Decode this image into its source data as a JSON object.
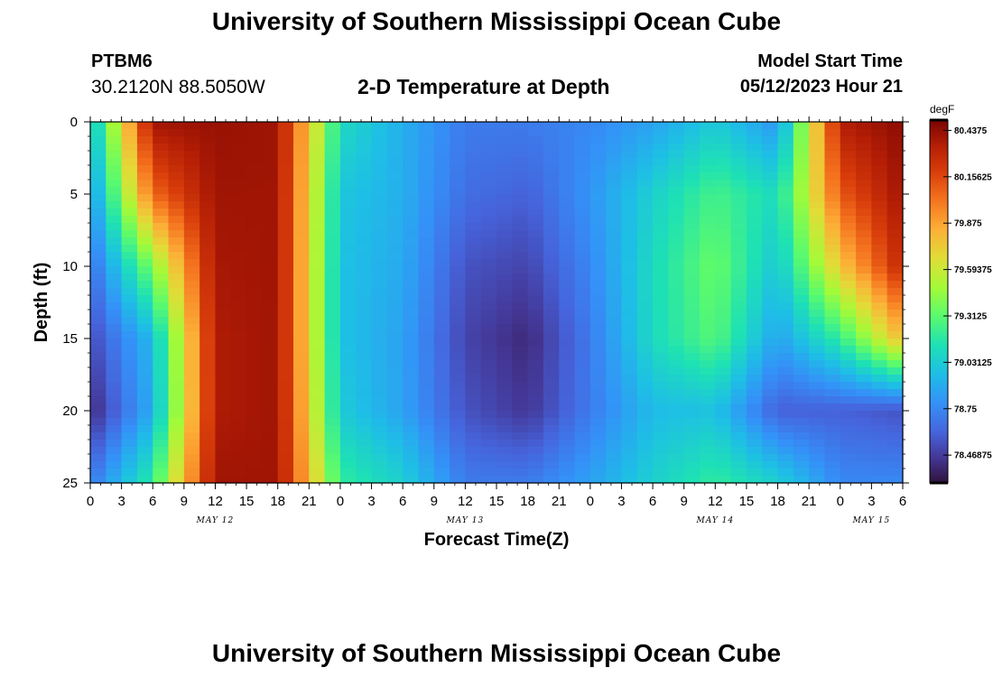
{
  "header": {
    "title": "University of Southern Mississippi Ocean Cube",
    "station": "PTBM6",
    "coords": "30.2120N  88.5050W",
    "plot_heading": "2-D Temperature at Depth",
    "model_start_label": "Model Start Time",
    "model_start_value": "05/12/2023 Hour 21"
  },
  "footer": {
    "title": "University of Southern Mississippi Ocean Cube"
  },
  "chart_data": {
    "type": "heatmap",
    "xlabel": "Forecast Time(Z)",
    "ylabel": "Depth (ft)",
    "x_tick_labels": [
      "0",
      "3",
      "6",
      "9",
      "12",
      "15",
      "18",
      "21",
      "0",
      "3",
      "6",
      "9",
      "12",
      "15",
      "18",
      "21",
      "0",
      "3",
      "6",
      "9",
      "12",
      "15",
      "18",
      "21",
      "0",
      "3",
      "6"
    ],
    "x_range_hours": [
      0,
      78
    ],
    "date_labels": [
      {
        "label": "MAY 12",
        "center_hour": 12
      },
      {
        "label": "MAY 13",
        "center_hour": 36
      },
      {
        "label": "MAY 14",
        "center_hour": 60
      },
      {
        "label": "MAY 15",
        "center_hour": 75
      }
    ],
    "y_ticks": [
      0,
      5,
      10,
      15,
      20,
      25
    ],
    "ylim": [
      0,
      25
    ],
    "y_inverted": true,
    "colorbar": {
      "unit": "degF",
      "min": 78.3,
      "max": 80.5,
      "tick_labels": [
        "80.4375",
        "80.15625",
        "79.875",
        "79.59375",
        "79.3125",
        "79.03125",
        "78.75",
        "78.46875"
      ],
      "tick_values": [
        80.4375,
        80.15625,
        79.875,
        79.59375,
        79.3125,
        79.03125,
        78.75,
        78.46875
      ]
    },
    "x_hours": [
      0,
      6,
      12,
      18,
      24,
      30,
      36,
      42,
      48,
      54,
      60,
      66,
      72,
      78
    ],
    "y_depths": [
      0,
      5,
      10,
      15,
      20,
      25
    ],
    "values": [
      [
        78.95,
        80.4,
        80.42,
        80.4,
        79.1,
        78.9,
        78.7,
        78.7,
        78.75,
        78.85,
        79.02,
        78.8,
        80.35,
        80.45
      ],
      [
        78.8,
        80.05,
        80.4,
        80.4,
        79.0,
        78.9,
        78.65,
        78.6,
        78.8,
        79.05,
        79.25,
        79.1,
        80.1,
        80.4
      ],
      [
        78.65,
        79.4,
        80.38,
        80.4,
        78.98,
        78.88,
        78.55,
        78.5,
        78.75,
        79.1,
        79.35,
        79.0,
        79.75,
        80.3
      ],
      [
        78.52,
        78.95,
        80.36,
        80.4,
        78.98,
        78.85,
        78.5,
        78.4,
        78.7,
        79.1,
        79.3,
        78.85,
        79.2,
        79.8
      ],
      [
        78.4,
        78.9,
        80.36,
        80.4,
        79.02,
        78.85,
        78.55,
        78.45,
        78.7,
        78.95,
        78.98,
        78.6,
        78.6,
        78.55
      ],
      [
        78.7,
        79.2,
        80.4,
        80.4,
        79.2,
        79.05,
        78.7,
        78.7,
        78.85,
        79.05,
        79.2,
        79.05,
        78.75,
        78.75
      ]
    ]
  }
}
